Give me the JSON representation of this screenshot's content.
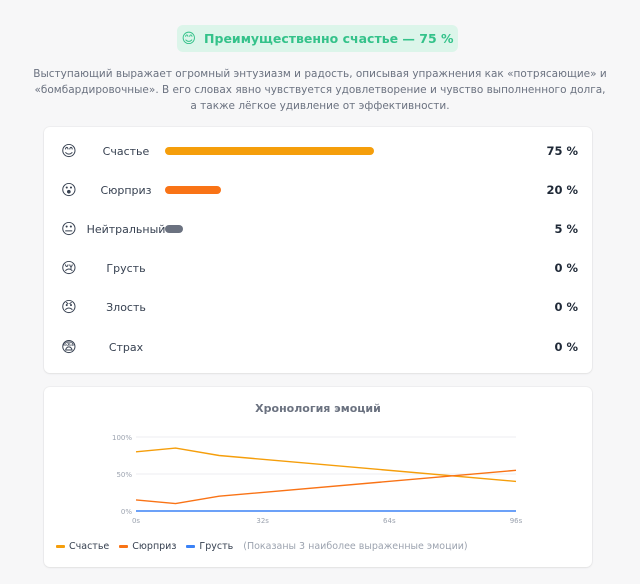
{
  "header": {
    "badge_emoji": "😊",
    "badge_text": "Преимущественно счастье — 75 %",
    "description": "Выступающий выражает огромный энтузиазм и радость, описывая упражнения как «потрясающие» и «бомбардировочные». В его словах явно чувствуется удовлетворение и чувство выполненного долга, а также лёгкое удивление от эффективности."
  },
  "emotions": [
    {
      "emoji": "😊",
      "label": "Счастье",
      "value": 75,
      "pct_text": "75 %",
      "color": "#f59e0b"
    },
    {
      "emoji": "😮",
      "label": "Сюрприз",
      "value": 20,
      "pct_text": "20 %",
      "color": "#f97316"
    },
    {
      "emoji": "😐",
      "label": "Нейтральный",
      "value": 5,
      "pct_text": "5 %",
      "color": "#6b7280"
    },
    {
      "emoji": "😢",
      "label": "Грусть",
      "value": 0,
      "pct_text": "0 %",
      "color": "#3b82f6"
    },
    {
      "emoji": "😠",
      "label": "Злость",
      "value": 0,
      "pct_text": "0 %",
      "color": "#ef4444"
    },
    {
      "emoji": "😨",
      "label": "Страх",
      "value": 0,
      "pct_text": "0 %",
      "color": "#8b5cf6"
    }
  ],
  "chart_data": {
    "type": "line",
    "title": "Хронология эмоций",
    "x": [
      0,
      10,
      21,
      96
    ],
    "xticks": [
      "0s",
      "32s",
      "64s",
      "96s"
    ],
    "xtick_values": [
      0,
      32,
      64,
      96
    ],
    "yticks": [
      "0%",
      "50%",
      "100%"
    ],
    "ytick_values": [
      0,
      50,
      100
    ],
    "xlim": [
      0,
      96
    ],
    "ylim": [
      0,
      100
    ],
    "series": [
      {
        "name": "Счастье",
        "color": "#f59e0b",
        "points": [
          [
            0,
            80
          ],
          [
            10,
            85
          ],
          [
            21,
            75
          ],
          [
            96,
            40
          ]
        ]
      },
      {
        "name": "Сюрприз",
        "color": "#f97316",
        "points": [
          [
            0,
            15
          ],
          [
            10,
            10
          ],
          [
            21,
            20
          ],
          [
            96,
            55
          ]
        ]
      },
      {
        "name": "Грусть",
        "color": "#3b82f6",
        "points": [
          [
            0,
            0
          ],
          [
            96,
            0
          ]
        ]
      }
    ],
    "legend_note": "(Показаны 3 наиболее выраженные эмоции)"
  }
}
